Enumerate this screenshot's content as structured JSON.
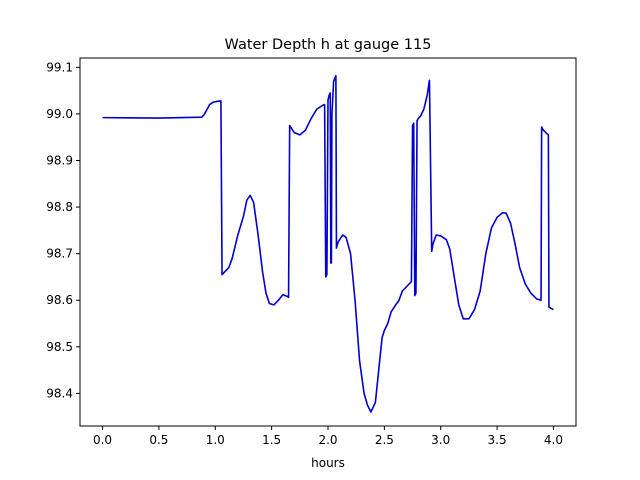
{
  "chart_data": {
    "type": "line",
    "title": "Water Depth h at gauge 115",
    "xlabel": "hours",
    "ylabel": "",
    "xlim": [
      -0.2,
      4.2
    ],
    "ylim": [
      98.33,
      99.12
    ],
    "grid": false,
    "legend": "none",
    "x_ticks": [
      0.0,
      0.5,
      1.0,
      1.5,
      2.0,
      2.5,
      3.0,
      3.5,
      4.0
    ],
    "x_tick_labels": [
      "0.0",
      "0.5",
      "1.0",
      "1.5",
      "2.0",
      "2.5",
      "3.0",
      "3.5",
      "4.0"
    ],
    "y_ticks": [
      98.4,
      98.5,
      98.6,
      98.7,
      98.8,
      98.9,
      99.0,
      99.1
    ],
    "y_tick_labels": [
      "98.4",
      "98.5",
      "98.6",
      "98.7",
      "98.8",
      "98.9",
      "99.0",
      "99.1"
    ],
    "series": [
      {
        "color": "#0000cc",
        "x": [
          0.0,
          0.5,
          0.88,
          0.9,
          0.95,
          0.98,
          1.02,
          1.05,
          1.06,
          1.08,
          1.12,
          1.15,
          1.2,
          1.25,
          1.28,
          1.31,
          1.34,
          1.38,
          1.42,
          1.45,
          1.48,
          1.52,
          1.56,
          1.6,
          1.64,
          1.65,
          1.66,
          1.7,
          1.75,
          1.8,
          1.85,
          1.9,
          1.95,
          1.97,
          1.98,
          1.99,
          2.0,
          2.01,
          2.02,
          2.025,
          2.03,
          2.035,
          2.05,
          2.07,
          2.075,
          2.09,
          2.13,
          2.16,
          2.2,
          2.24,
          2.28,
          2.32,
          2.35,
          2.38,
          2.42,
          2.45,
          2.48,
          2.5,
          2.53,
          2.56,
          2.6,
          2.63,
          2.66,
          2.7,
          2.74,
          2.75,
          2.76,
          2.77,
          2.78,
          2.79,
          2.8,
          2.82,
          2.85,
          2.88,
          2.9,
          2.92,
          2.93,
          2.96,
          3.0,
          3.05,
          3.08,
          3.12,
          3.16,
          3.2,
          3.25,
          3.3,
          3.35,
          3.4,
          3.45,
          3.5,
          3.55,
          3.58,
          3.62,
          3.66,
          3.7,
          3.75,
          3.8,
          3.85,
          3.89,
          3.895,
          3.91,
          3.94,
          3.955,
          3.96,
          4.0
        ],
        "y": [
          98.992,
          98.991,
          98.993,
          98.998,
          99.02,
          99.025,
          99.027,
          99.028,
          98.655,
          98.66,
          98.67,
          98.69,
          98.74,
          98.78,
          98.815,
          98.825,
          98.81,
          98.74,
          98.66,
          98.615,
          98.593,
          98.59,
          98.6,
          98.612,
          98.608,
          98.606,
          98.975,
          98.96,
          98.955,
          98.965,
          98.99,
          99.01,
          99.018,
          99.02,
          98.65,
          98.655,
          99.03,
          99.04,
          99.045,
          98.68,
          98.68,
          99.0,
          99.07,
          99.082,
          98.712,
          98.725,
          98.74,
          98.735,
          98.7,
          98.6,
          98.47,
          98.4,
          98.375,
          98.36,
          98.38,
          98.45,
          98.52,
          98.535,
          98.55,
          98.575,
          98.59,
          98.6,
          98.62,
          98.63,
          98.64,
          98.975,
          98.98,
          98.61,
          98.615,
          98.985,
          98.99,
          98.995,
          99.01,
          99.04,
          99.072,
          98.705,
          98.72,
          98.74,
          98.738,
          98.73,
          98.71,
          98.65,
          98.59,
          98.56,
          98.56,
          98.58,
          98.62,
          98.7,
          98.755,
          98.778,
          98.788,
          98.787,
          98.765,
          98.72,
          98.67,
          98.635,
          98.615,
          98.603,
          98.6,
          98.972,
          98.965,
          98.958,
          98.955,
          98.585,
          98.58
        ]
      }
    ]
  }
}
